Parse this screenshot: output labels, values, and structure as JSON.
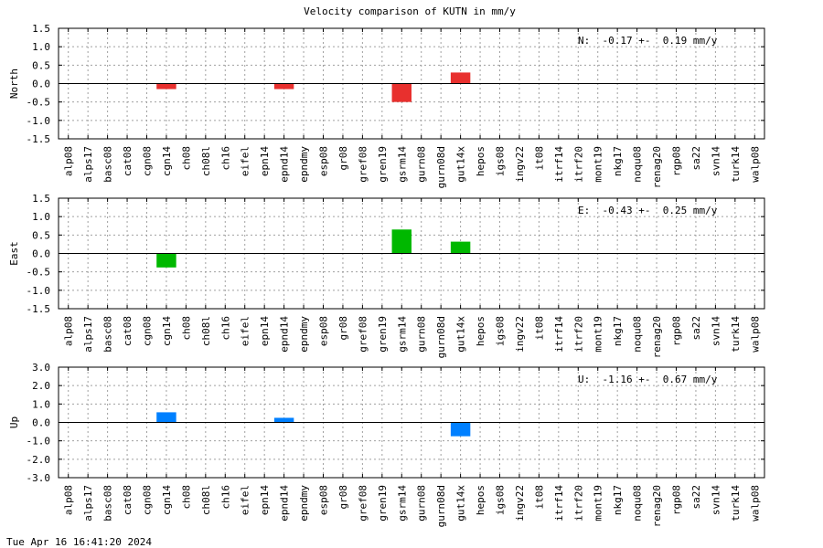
{
  "title": "Velocity comparison of KUTN in mm/y",
  "timestamp": "Tue Apr 16 16:41:20 2024",
  "chart_data": {
    "type": "bar",
    "categories": [
      "alp08",
      "alps17",
      "basc08",
      "cat08",
      "cgn08",
      "cgn14",
      "ch08",
      "ch08l",
      "ch16",
      "eifel",
      "epn14",
      "epnd14",
      "epndmy",
      "esp08",
      "gr08",
      "gref08",
      "gren19",
      "gsrm14",
      "gurn08",
      "gurn08d",
      "gut14x",
      "hepos",
      "igs08",
      "ingv22",
      "it08",
      "itrf14",
      "itrf20",
      "mont19",
      "nkg17",
      "noqu08",
      "renag20",
      "rgp08",
      "sa22",
      "svn14",
      "turk14",
      "walp08"
    ],
    "panels": [
      {
        "ylabel": "North",
        "color": "#e8302e",
        "ylim": [
          -1.5,
          1.5
        ],
        "yticks": [
          1.5,
          1.0,
          0.5,
          0.0,
          -0.5,
          -1.0,
          -1.5
        ],
        "ytick_labels": [
          "1.5",
          "1.0",
          "0.5",
          "0.0",
          "-0.5",
          "-1.0",
          "-1.5"
        ],
        "annotation": "N:  -0.17 +-  0.19 mm/y",
        "values": [
          null,
          null,
          null,
          null,
          null,
          -0.15,
          null,
          null,
          null,
          null,
          null,
          -0.15,
          null,
          null,
          null,
          null,
          null,
          -0.5,
          null,
          null,
          0.3,
          null,
          null,
          null,
          null,
          null,
          null,
          null,
          null,
          null,
          null,
          null,
          null,
          null,
          null,
          null
        ]
      },
      {
        "ylabel": "East",
        "color": "#00b800",
        "ylim": [
          -1.5,
          1.5
        ],
        "yticks": [
          1.5,
          1.0,
          0.5,
          0.0,
          -0.5,
          -1.0,
          -1.5
        ],
        "ytick_labels": [
          "1.5",
          "1.0",
          "0.5",
          "0.0",
          "-0.5",
          "-1.0",
          "-1.5"
        ],
        "annotation": "E:  -0.43 +-  0.25 mm/y",
        "values": [
          null,
          null,
          null,
          null,
          null,
          -0.38,
          null,
          null,
          null,
          null,
          null,
          null,
          null,
          null,
          null,
          null,
          null,
          0.65,
          null,
          null,
          0.32,
          null,
          null,
          null,
          null,
          null,
          null,
          null,
          null,
          null,
          null,
          null,
          null,
          null,
          null,
          null
        ]
      },
      {
        "ylabel": "Up",
        "color": "#0080ff",
        "ylim": [
          -3.0,
          3.0
        ],
        "yticks": [
          3.0,
          2.0,
          1.0,
          0.0,
          -1.0,
          -2.0,
          -3.0
        ],
        "ytick_labels": [
          "3.0",
          "2.0",
          "1.0",
          "0.0",
          "-1.0",
          "-2.0",
          "-3.0"
        ],
        "annotation": "U:  -1.16 +-  0.67 mm/y",
        "values": [
          null,
          null,
          null,
          null,
          null,
          0.55,
          null,
          null,
          null,
          null,
          null,
          0.25,
          null,
          null,
          null,
          null,
          null,
          null,
          null,
          null,
          -0.75,
          null,
          null,
          null,
          null,
          null,
          null,
          null,
          null,
          null,
          null,
          null,
          null,
          null,
          null,
          null
        ]
      }
    ],
    "grid": true
  }
}
